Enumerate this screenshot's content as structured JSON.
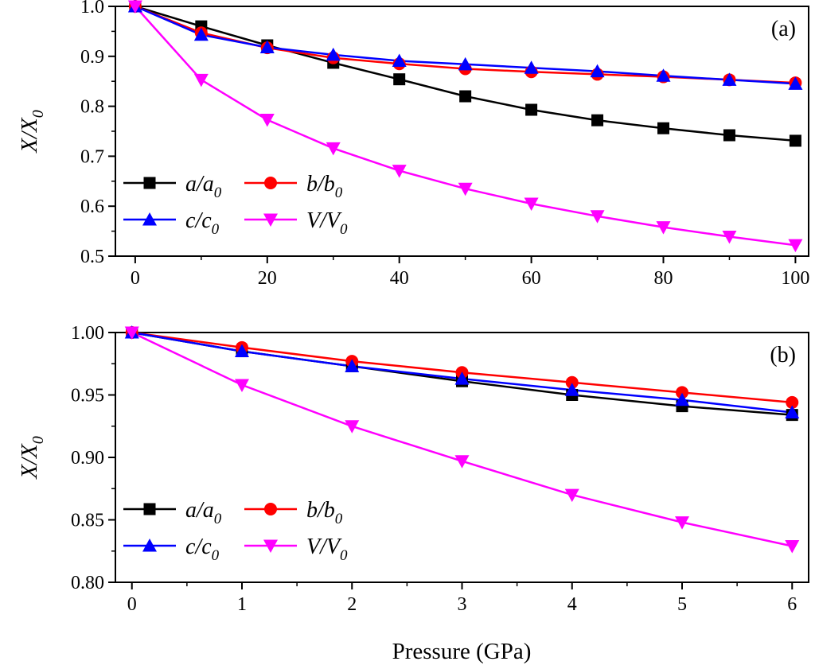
{
  "figure": {
    "xlabel": "Pressure (GPa)"
  },
  "legend_labels": {
    "a": "a/a",
    "b": "b/b",
    "c": "c/c",
    "V": "V/V",
    "sub": "0"
  },
  "chart_data": [
    {
      "type": "line",
      "panel_label": "(a)",
      "ylabel": "X/X",
      "ylabel_sub": "0",
      "xlim": [
        -3,
        102
      ],
      "ylim": [
        0.5,
        1.0
      ],
      "xticks": [
        0,
        20,
        40,
        60,
        80,
        100
      ],
      "yticks": [
        0.5,
        0.6,
        0.7,
        0.8,
        0.9,
        1.0
      ],
      "ytick_labels": [
        "0.5",
        "0.6",
        "0.7",
        "0.8",
        "0.9",
        "1.0"
      ],
      "legend_position": "lower-left",
      "x": [
        0,
        10,
        20,
        30,
        40,
        50,
        60,
        70,
        80,
        90,
        100
      ],
      "series": [
        {
          "key": "a",
          "color": "#000000",
          "marker": "square",
          "values": [
            1.0,
            0.96,
            0.922,
            0.887,
            0.854,
            0.82,
            0.793,
            0.772,
            0.756,
            0.742,
            0.731
          ]
        },
        {
          "key": "b",
          "color": "#ff0000",
          "marker": "circle",
          "values": [
            1.0,
            0.947,
            0.917,
            0.897,
            0.885,
            0.875,
            0.869,
            0.864,
            0.859,
            0.853,
            0.847
          ]
        },
        {
          "key": "c",
          "color": "#0000ff",
          "marker": "triangle-up",
          "values": [
            1.0,
            0.943,
            0.918,
            0.903,
            0.891,
            0.884,
            0.877,
            0.87,
            0.861,
            0.853,
            0.845
          ]
        },
        {
          "key": "V",
          "color": "#ff00ff",
          "marker": "triangle-down",
          "values": [
            1.0,
            0.853,
            0.773,
            0.716,
            0.671,
            0.635,
            0.605,
            0.58,
            0.558,
            0.539,
            0.522
          ]
        }
      ]
    },
    {
      "type": "line",
      "panel_label": "(b)",
      "ylabel": "X/X",
      "ylabel_sub": "0",
      "xlim": [
        -0.15,
        6.15
      ],
      "ylim": [
        0.8,
        1.0
      ],
      "xticks": [
        0,
        1,
        2,
        3,
        4,
        5,
        6
      ],
      "yticks": [
        0.8,
        0.85,
        0.9,
        0.95,
        1.0
      ],
      "ytick_labels": [
        "0.80",
        "0.85",
        "0.90",
        "0.95",
        "1.00"
      ],
      "legend_position": "lower-left",
      "x": [
        0,
        1,
        2,
        3,
        4,
        5,
        6
      ],
      "series": [
        {
          "key": "a",
          "color": "#000000",
          "marker": "square",
          "values": [
            1.0,
            0.985,
            0.973,
            0.961,
            0.95,
            0.941,
            0.934
          ]
        },
        {
          "key": "b",
          "color": "#ff0000",
          "marker": "circle",
          "values": [
            1.0,
            0.988,
            0.977,
            0.968,
            0.96,
            0.952,
            0.944
          ]
        },
        {
          "key": "c",
          "color": "#0000ff",
          "marker": "triangle-up",
          "values": [
            1.0,
            0.985,
            0.973,
            0.963,
            0.954,
            0.946,
            0.936
          ]
        },
        {
          "key": "V",
          "color": "#ff00ff",
          "marker": "triangle-down",
          "values": [
            1.0,
            0.958,
            0.925,
            0.897,
            0.87,
            0.848,
            0.829
          ]
        }
      ]
    }
  ]
}
